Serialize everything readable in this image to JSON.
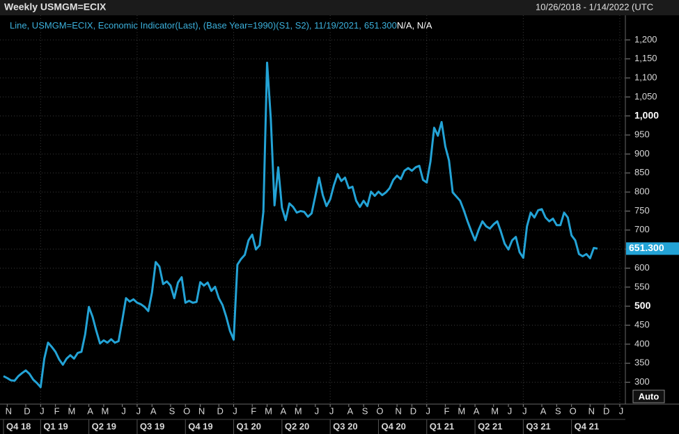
{
  "chart_data": {
    "type": "line",
    "title": "Weekly USMGM=ECIX",
    "date_range": "10/26/2018 - 1/14/2022 (UTC",
    "legend_text": "Line, USMGM=ECIX, Economic Indicator(Last), (Base Year=1990)(S1, S2), 11/19/2021,",
    "legend_extra": "N/A, N/A",
    "button": "Auto",
    "ylim": [
      248,
      1250
    ],
    "yticks": [
      300,
      350,
      400,
      450,
      500,
      550,
      600,
      650,
      700,
      750,
      800,
      850,
      900,
      950,
      {
        "value": 1000,
        "label": "1,000"
      },
      {
        "value": 1050,
        "label": "1,050"
      },
      {
        "value": 1100,
        "label": "1,100"
      },
      {
        "value": 1150,
        "label": "1,150"
      },
      {
        "value": 1200,
        "label": "1,200"
      }
    ],
    "bold_ticks": [
      500,
      1000
    ],
    "grid": true,
    "categories": [
      null,
      "N",
      null,
      null,
      null,
      null,
      "D",
      null,
      null,
      null,
      "J",
      null,
      null,
      null,
      "F",
      null,
      null,
      null,
      "M",
      null,
      null,
      null,
      null,
      "A",
      null,
      null,
      null,
      "M",
      null,
      null,
      null,
      null,
      "J",
      null,
      null,
      null,
      "J",
      null,
      null,
      null,
      "A",
      null,
      null,
      null,
      null,
      "S",
      null,
      null,
      null,
      "O",
      null,
      null,
      null,
      "N",
      null,
      null,
      null,
      null,
      "D",
      null,
      null,
      null,
      "J",
      null,
      null,
      null,
      null,
      "F",
      null,
      null,
      null,
      "M",
      null,
      null,
      null,
      "A",
      null,
      null,
      null,
      "M",
      null,
      null,
      null,
      null,
      "J",
      null,
      null,
      null,
      "J",
      null,
      null,
      null,
      null,
      "A",
      null,
      null,
      null,
      "S",
      null,
      null,
      null,
      "O",
      null,
      null,
      null,
      null,
      "N",
      null,
      null,
      null,
      "D",
      null,
      null,
      null,
      "J",
      null,
      null,
      null,
      null,
      "F",
      null,
      null,
      null,
      "M",
      null,
      null,
      null,
      "A",
      null,
      null,
      null,
      null,
      "M",
      null,
      null,
      null,
      "J",
      null,
      null,
      null,
      "J",
      null,
      null,
      null,
      null,
      "A",
      null,
      null,
      null,
      "S",
      null,
      null,
      null,
      "O",
      null,
      null,
      null,
      null,
      "N",
      null,
      null,
      null,
      "D",
      null,
      null,
      null,
      "J"
    ],
    "quarters": [
      "Q4 18",
      null,
      null,
      null,
      null,
      null,
      null,
      null,
      null,
      null,
      "Q1 19",
      null,
      null,
      null,
      null,
      null,
      null,
      null,
      null,
      null,
      null,
      null,
      null,
      "Q2 19",
      null,
      null,
      null,
      null,
      null,
      null,
      null,
      null,
      null,
      null,
      null,
      null,
      "Q3 19",
      null,
      null,
      null,
      null,
      null,
      null,
      null,
      null,
      null,
      null,
      null,
      null,
      "Q4 19",
      null,
      null,
      null,
      null,
      null,
      null,
      null,
      null,
      null,
      null,
      null,
      null,
      "Q1 20",
      null,
      null,
      null,
      null,
      null,
      null,
      null,
      null,
      null,
      null,
      null,
      null,
      "Q2 20",
      null,
      null,
      null,
      null,
      null,
      null,
      null,
      null,
      null,
      null,
      null,
      null,
      "Q3 20",
      null,
      null,
      null,
      null,
      null,
      null,
      null,
      null,
      null,
      null,
      null,
      null,
      "Q4 20",
      null,
      null,
      null,
      null,
      null,
      null,
      null,
      null,
      null,
      null,
      null,
      null,
      "Q1 21",
      null,
      null,
      null,
      null,
      null,
      null,
      null,
      null,
      null,
      null,
      null,
      null,
      "Q2 21",
      null,
      null,
      null,
      null,
      null,
      null,
      null,
      null,
      null,
      null,
      null,
      null,
      "Q3 21",
      null,
      null,
      null,
      null,
      null,
      null,
      null,
      null,
      null,
      null,
      null,
      null,
      "Q4 21",
      null,
      null,
      null,
      null,
      null,
      null,
      null,
      null,
      null,
      null,
      null,
      null,
      null
    ],
    "series": [
      {
        "name": "USMGM=ECIX",
        "color": "#23a3d6",
        "values": [
          316,
          311,
          305,
          304,
          316,
          324,
          331,
          322,
          307,
          298,
          287,
          362,
          404,
          393,
          380,
          360,
          346,
          362,
          371,
          362,
          377,
          380,
          426,
          498,
          472,
          435,
          402,
          410,
          404,
          413,
          404,
          408,
          463,
          521,
          512,
          518,
          509,
          505,
          498,
          487,
          536,
          616,
          604,
          558,
          565,
          554,
          521,
          562,
          576,
          509,
          514,
          509,
          511,
          563,
          554,
          562,
          540,
          551,
          521,
          503,
          472,
          435,
          412,
          609,
          624,
          635,
          673,
          688,
          649,
          660,
          748,
          1140,
          993,
          765,
          865,
          759,
          726,
          770,
          761,
          746,
          750,
          748,
          735,
          744,
          790,
          838,
          792,
          763,
          781,
          818,
          847,
          829,
          838,
          810,
          814,
          777,
          761,
          777,
          763,
          801,
          790,
          801,
          792,
          799,
          810,
          832,
          843,
          834,
          856,
          863,
          856,
          865,
          869,
          832,
          825,
          880,
          969,
          948,
          984,
          920,
          883,
          799,
          788,
          777,
          752,
          723,
          697,
          673,
          701,
          723,
          710,
          704,
          715,
          723,
          695,
          664,
          649,
          673,
          682,
          642,
          627,
          710,
          746,
          733,
          752,
          755,
          733,
          723,
          730,
          713,
          713,
          746,
          733,
          686,
          673,
          637,
          631,
          637,
          626,
          653,
          651.3,
          null,
          null,
          null,
          null,
          null,
          null
        ],
        "value_labels": [
          null,
          null,
          null,
          null,
          null,
          null,
          null,
          null,
          null,
          null,
          null,
          null,
          null,
          null,
          null,
          null,
          null,
          null,
          null,
          null,
          null,
          null,
          null,
          null,
          null,
          null,
          null,
          null,
          null,
          null,
          null,
          null,
          null,
          null,
          null,
          null,
          null,
          null,
          null,
          null,
          null,
          null,
          null,
          null,
          null,
          null,
          null,
          null,
          null,
          null,
          null,
          null,
          null,
          null,
          null,
          null,
          null,
          null,
          null,
          null,
          null,
          null,
          null,
          null,
          null,
          null,
          null,
          null,
          null,
          null,
          null,
          null,
          null,
          null,
          null,
          null,
          null,
          null,
          null,
          null,
          null,
          null,
          null,
          null,
          null,
          null,
          null,
          null,
          null,
          null,
          null,
          null,
          null,
          null,
          null,
          null,
          null,
          null,
          null,
          null,
          null,
          null,
          null,
          null,
          null,
          null,
          null,
          null,
          null,
          null,
          null,
          null,
          null,
          null,
          null,
          null,
          null,
          null,
          null,
          null,
          null,
          null,
          null,
          null,
          null,
          null,
          null,
          null,
          null,
          null,
          null,
          null,
          null,
          null,
          null,
          null,
          null,
          null,
          null,
          null,
          null,
          null,
          null,
          null,
          null,
          null,
          null,
          null,
          null,
          null,
          null,
          null,
          null,
          null,
          null,
          null,
          null,
          null,
          null,
          null,
          "651.300",
          null,
          null,
          null,
          null,
          null,
          null
        ]
      }
    ]
  }
}
